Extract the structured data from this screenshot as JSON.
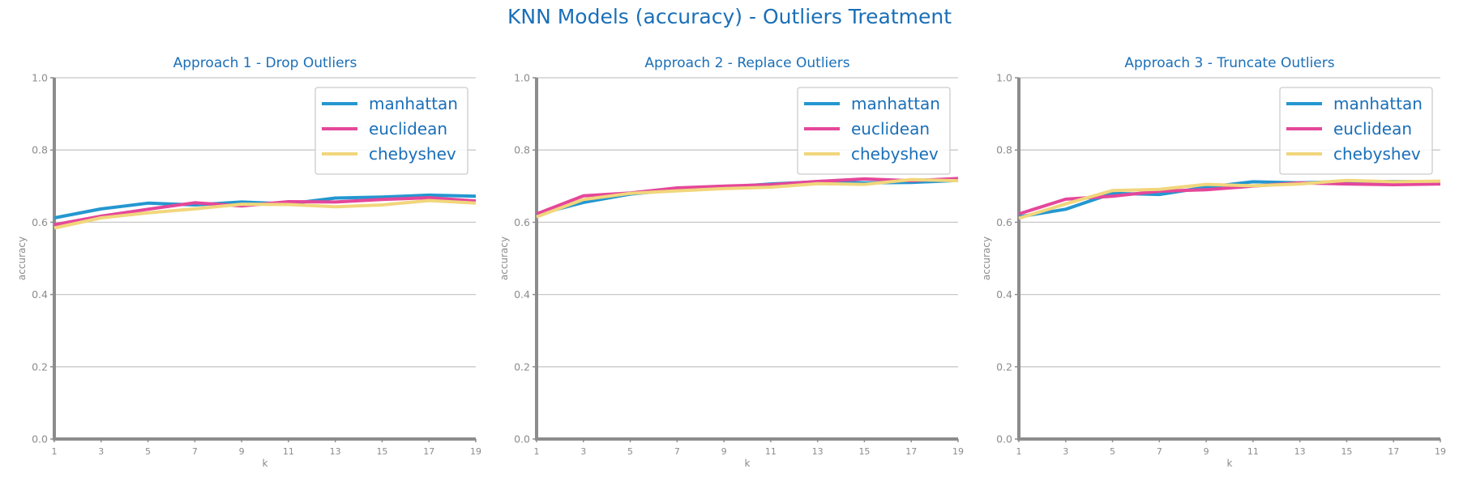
{
  "title": "KNN Models (accuracy) - Outliers Treatment",
  "colors": {
    "manhattan": "#2497d0",
    "euclidean": "#e4479a",
    "chebyshev": "#f1d67c",
    "title": "#1a6fb8",
    "axis": "#8c8c8c",
    "grid": "#c8c8c8"
  },
  "chart_data": [
    {
      "type": "line",
      "title": "Approach 1 - Drop Outliers",
      "xlabel": "k",
      "ylabel": "accuracy",
      "x": [
        1,
        3,
        5,
        7,
        9,
        11,
        13,
        15,
        17,
        19
      ],
      "xticks": [
        "1",
        "3",
        "5",
        "7",
        "9",
        "11",
        "13",
        "15",
        "17",
        "19"
      ],
      "yticks": [
        "0.0",
        "0.2",
        "0.4",
        "0.6",
        "0.8",
        "1.0"
      ],
      "ylim": [
        0,
        1
      ],
      "grid": "horizontal",
      "legend": "top-right",
      "series": [
        {
          "name": "manhattan",
          "values": [
            0.612,
            0.637,
            0.653,
            0.648,
            0.656,
            0.651,
            0.667,
            0.67,
            0.675,
            0.672
          ]
        },
        {
          "name": "euclidean",
          "values": [
            0.593,
            0.617,
            0.636,
            0.654,
            0.645,
            0.657,
            0.656,
            0.663,
            0.668,
            0.659
          ]
        },
        {
          "name": "chebyshev",
          "values": [
            0.584,
            0.612,
            0.626,
            0.637,
            0.65,
            0.649,
            0.643,
            0.648,
            0.66,
            0.653
          ]
        }
      ]
    },
    {
      "type": "line",
      "title": "Approach 2 - Replace Outliers",
      "xlabel": "k",
      "ylabel": "accuracy",
      "x": [
        1,
        3,
        5,
        7,
        9,
        11,
        13,
        15,
        17,
        19
      ],
      "xticks": [
        "1",
        "3",
        "5",
        "7",
        "9",
        "11",
        "13",
        "15",
        "17",
        "19"
      ],
      "yticks": [
        "0.0",
        "0.2",
        "0.4",
        "0.6",
        "0.8",
        "1.0"
      ],
      "ylim": [
        0,
        1
      ],
      "grid": "horizontal",
      "legend": "top-right",
      "series": [
        {
          "name": "manhattan",
          "values": [
            0.621,
            0.655,
            0.678,
            0.69,
            0.697,
            0.706,
            0.712,
            0.709,
            0.71,
            0.716
          ]
        },
        {
          "name": "euclidean",
          "values": [
            0.623,
            0.673,
            0.681,
            0.695,
            0.7,
            0.704,
            0.713,
            0.72,
            0.715,
            0.721
          ]
        },
        {
          "name": "chebyshev",
          "values": [
            0.615,
            0.663,
            0.68,
            0.687,
            0.693,
            0.697,
            0.707,
            0.705,
            0.718,
            0.715
          ]
        }
      ]
    },
    {
      "type": "line",
      "title": "Approach 3 - Truncate Outliers",
      "xlabel": "k",
      "ylabel": "accuracy",
      "x": [
        1,
        3,
        5,
        7,
        9,
        11,
        13,
        15,
        17,
        19
      ],
      "xticks": [
        "1",
        "3",
        "5",
        "7",
        "9",
        "11",
        "13",
        "15",
        "17",
        "19"
      ],
      "yticks": [
        "0.0",
        "0.2",
        "0.4",
        "0.6",
        "0.8",
        "1.0"
      ],
      "ylim": [
        0,
        1
      ],
      "grid": "horizontal",
      "legend": "top-right",
      "series": [
        {
          "name": "manhattan",
          "values": [
            0.615,
            0.636,
            0.68,
            0.677,
            0.697,
            0.712,
            0.709,
            0.713,
            0.713,
            0.712
          ]
        },
        {
          "name": "euclidean",
          "values": [
            0.623,
            0.664,
            0.672,
            0.686,
            0.69,
            0.7,
            0.709,
            0.706,
            0.704,
            0.706
          ]
        },
        {
          "name": "chebyshev",
          "values": [
            0.611,
            0.651,
            0.688,
            0.691,
            0.705,
            0.701,
            0.706,
            0.716,
            0.712,
            0.714
          ]
        }
      ]
    }
  ]
}
